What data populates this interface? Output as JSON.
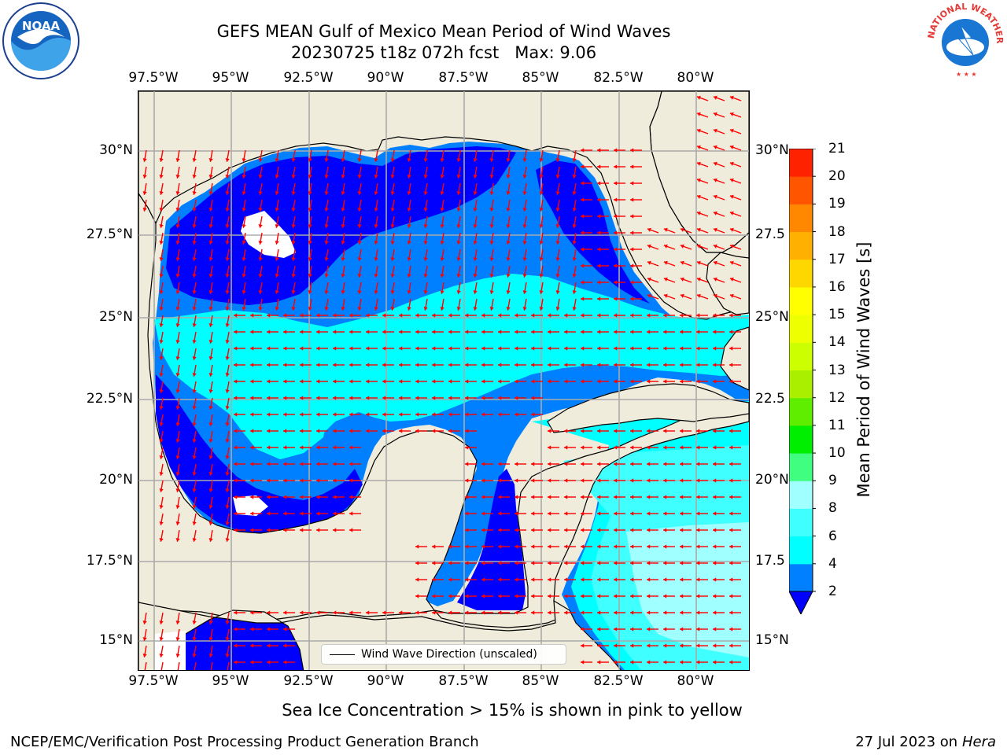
{
  "title": {
    "line1": "GEFS MEAN Gulf of Mexico Mean Period of Wind Waves",
    "line2": "20230725 t18z 072h fcst   Max: 9.06"
  },
  "axes": {
    "lon_ticks": [
      "97.5°W",
      "95°W",
      "92.5°W",
      "90°W",
      "87.5°W",
      "85°W",
      "82.5°W",
      "80°W"
    ],
    "lon_ticks_bottom": [
      "97.5°W",
      "95°W",
      "92.5°W",
      "90°W",
      "87.5°W",
      "85°W",
      "82.5°W",
      "80°W"
    ],
    "lat_ticks_left": [
      "30°N",
      "27.5°N",
      "25°N",
      "22.5°N",
      "20°N",
      "17.5°N",
      "15°N"
    ],
    "lat_ticks_right": [
      "30°N",
      "27.5",
      "25°N",
      "22.5",
      "20°N",
      "17.5",
      "15°N"
    ]
  },
  "legend": {
    "label": "Wind Wave Direction (unscaled)"
  },
  "colorbar": {
    "label": "Mean Period of Wind Waves [s]",
    "ticks": [
      "21",
      "20",
      "19",
      "18",
      "17",
      "16",
      "15",
      "14",
      "13",
      "12",
      "11",
      "10",
      "9",
      "8",
      "6",
      "4",
      "2"
    ],
    "levels": [
      2,
      4,
      6,
      8,
      9,
      10,
      11,
      12,
      13,
      14,
      15,
      16,
      17,
      18,
      19,
      20,
      21
    ],
    "colors": [
      "#0080ff",
      "#00ffff",
      "#40ffff",
      "#a0ffff",
      "#40ff80",
      "#00ee00",
      "#60ee00",
      "#aaee00",
      "#ccff00",
      "#eeff00",
      "#ffff00",
      "#ffd700",
      "#ffb000",
      "#ff8800",
      "#ff5500",
      "#ff2200"
    ],
    "under_color": "#0000ff"
  },
  "map_colors": {
    "land": "#efecdb",
    "arrow": "#ff0000"
  },
  "ice_note": "Sea Ice Concentration > 15% is shown in pink to yellow",
  "footer": {
    "left": "NCEP/EMC/Verification Post Processing Product Generation Branch",
    "right_date": "27 Jul 2023 on ",
    "right_host": "Hera"
  },
  "logos": {
    "left": "noaa-logo",
    "right": "nws-logo",
    "nws_text": "NATIONAL WEATHER SERVICE"
  }
}
